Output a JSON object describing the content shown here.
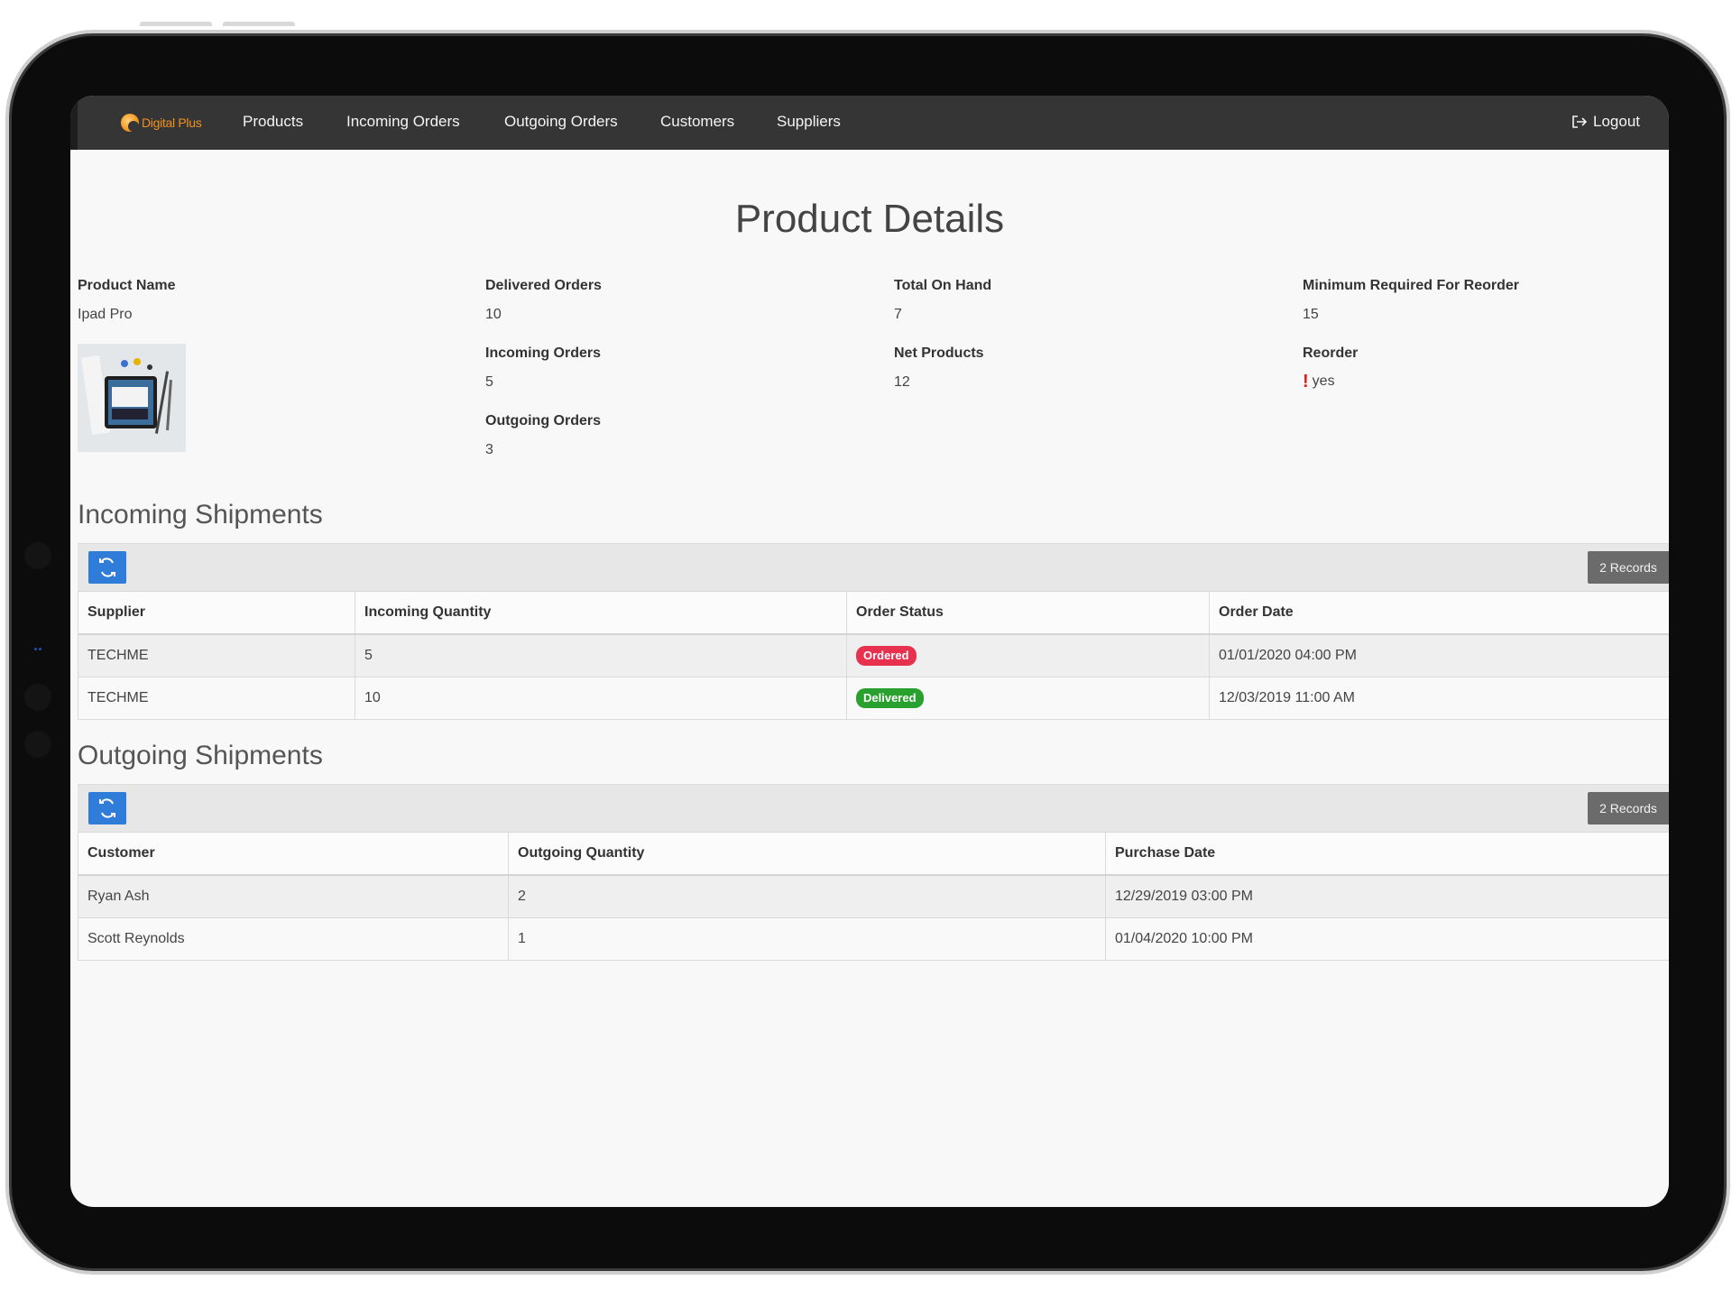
{
  "nav": {
    "brand": "Digital Plus",
    "items": [
      {
        "label": "Products"
      },
      {
        "label": "Incoming Orders"
      },
      {
        "label": "Outgoing Orders"
      },
      {
        "label": "Customers"
      },
      {
        "label": "Suppliers"
      }
    ],
    "logout_label": "Logout"
  },
  "page_title": "Product Details",
  "details": {
    "product_name": {
      "label": "Product Name",
      "value": "Ipad Pro"
    },
    "delivered_orders": {
      "label": "Delivered Orders",
      "value": "10"
    },
    "incoming_orders": {
      "label": "Incoming Orders",
      "value": "5"
    },
    "outgoing_orders": {
      "label": "Outgoing Orders",
      "value": "3"
    },
    "total_on_hand": {
      "label": "Total On Hand",
      "value": "7"
    },
    "net_products": {
      "label": "Net Products",
      "value": "12"
    },
    "min_reorder": {
      "label": "Minimum Required For Reorder",
      "value": "15"
    },
    "reorder": {
      "label": "Reorder",
      "value": "yes",
      "icon": "exclamation-icon"
    }
  },
  "incoming": {
    "title": "Incoming Shipments",
    "records": "2 Records",
    "columns": [
      "Supplier",
      "Incoming Quantity",
      "Order Status",
      "Order Date"
    ],
    "rows": [
      {
        "supplier": "TECHME",
        "quantity": "5",
        "status": "Ordered",
        "date": "01/01/2020 04:00 PM"
      },
      {
        "supplier": "TECHME",
        "quantity": "10",
        "status": "Delivered",
        "date": "12/03/2019 11:00 AM"
      }
    ]
  },
  "outgoing": {
    "title": "Outgoing Shipments",
    "records": "2 Records",
    "columns": [
      "Customer",
      "Outgoing Quantity",
      "Purchase Date"
    ],
    "rows": [
      {
        "customer": "Ryan Ash",
        "quantity": "2",
        "date": "12/29/2019 03:00 PM"
      },
      {
        "customer": "Scott Reynolds",
        "quantity": "1",
        "date": "01/04/2020 10:00 PM"
      }
    ]
  },
  "colors": {
    "navbar": "#353535",
    "brand": "#f0911e",
    "button_blue": "#2f7dd8",
    "status_ordered": "#e8314f",
    "status_delivered": "#29a12e",
    "reorder_alert": "#e11a1a"
  }
}
